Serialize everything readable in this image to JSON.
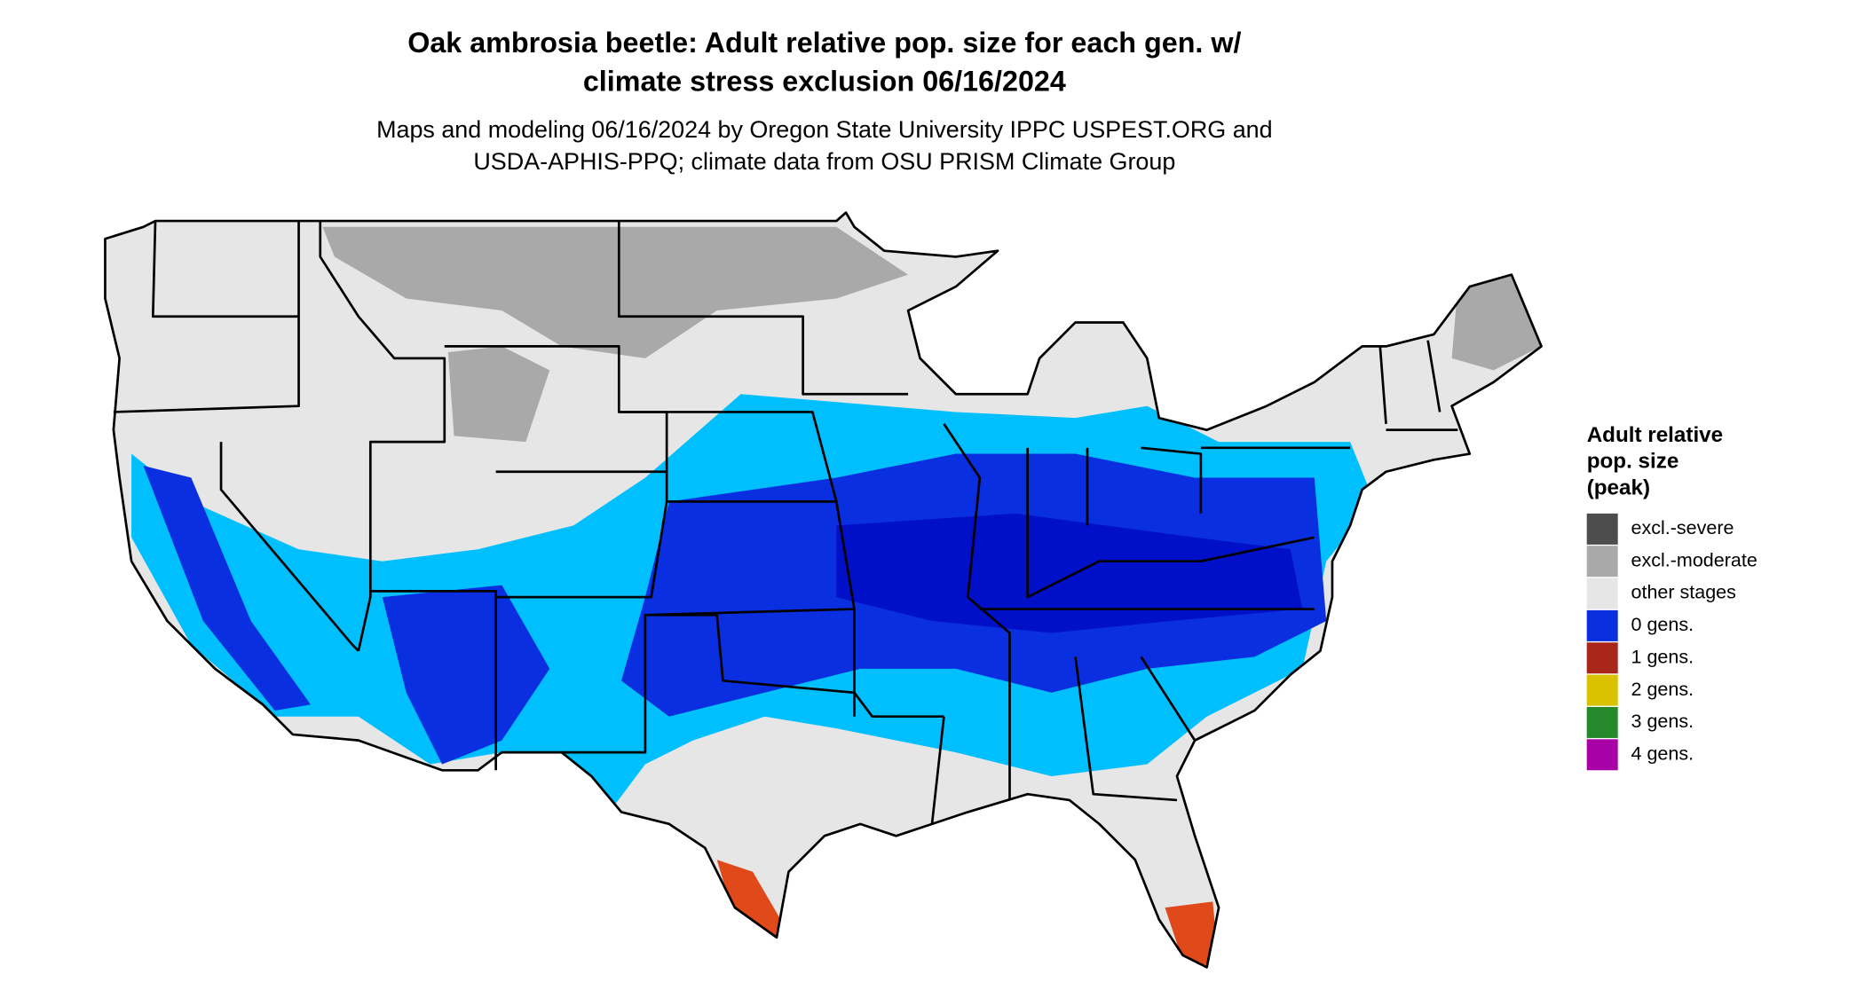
{
  "header": {
    "title": [
      "Oak ambrosia beetle: Adult relative pop. size for each gen. w/",
      "climate stress exclusion 06/16/2024"
    ],
    "subtitle": [
      "Maps and modeling 06/16/2024 by Oregon State University IPPC USPEST.ORG and",
      "USDA-APHIS-PPQ; climate data from OSU PRISM Climate Group"
    ]
  },
  "legend": {
    "title": [
      "Adult relative",
      "pop. size",
      "(peak)"
    ],
    "items": [
      {
        "label": "excl.-severe",
        "color": "#4d4d4d"
      },
      {
        "label": "excl.-moderate",
        "color": "#a9a9a9"
      },
      {
        "label": "other stages",
        "color": "#e6e6e6"
      },
      {
        "label": "0 gens.",
        "color": "#0a2fe0"
      },
      {
        "label": "1 gens.",
        "color": "#a8261a"
      },
      {
        "label": "2 gens.",
        "color": "#d9c200"
      },
      {
        "label": "3 gens.",
        "color": "#23892a"
      },
      {
        "label": "4 gens.",
        "color": "#a600a6"
      }
    ]
  }
}
